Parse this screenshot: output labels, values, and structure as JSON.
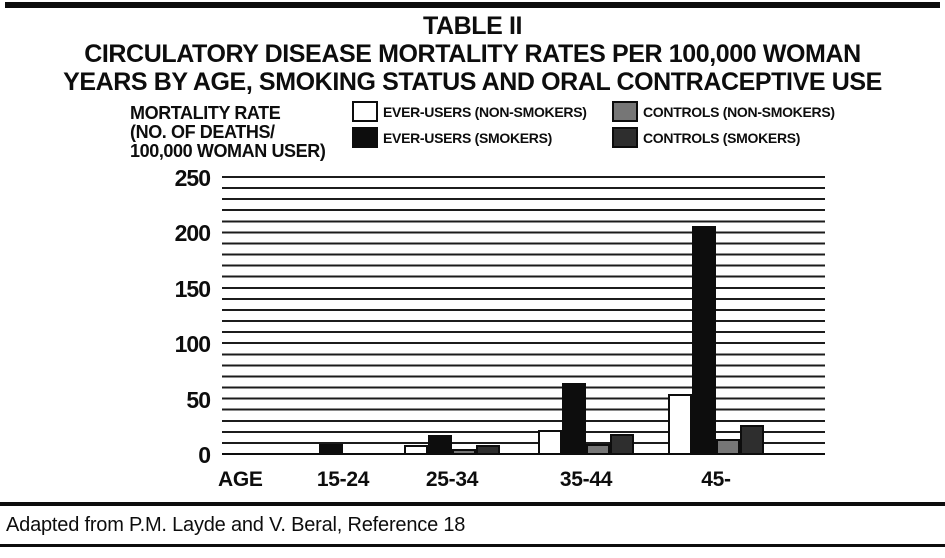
{
  "chart_data": {
    "type": "bar",
    "table_label": "TABLE II",
    "title_line1": "CIRCULATORY DISEASE MORTALITY RATES PER 100,000 WOMAN",
    "title_line2": "YEARS BY AGE, SMOKING STATUS AND ORAL CONTRACEPTIVE USE",
    "ylabel_lines": [
      "MORTALITY RATE",
      "(NO. OF DEATHS/",
      "100,000 WOMAN USER)"
    ],
    "ylabel": "MORTALITY RATE (NO. OF DEATHS/100,000 WOMAN USER)",
    "xlabel": "AGE",
    "categories": [
      "15-24",
      "25-34",
      "35-44",
      "45-"
    ],
    "series": [
      {
        "name": "EVER-USERS (NON-SMOKERS)",
        "color": "#ffffff",
        "values": [
          0,
          9,
          23,
          55
        ]
      },
      {
        "name": "EVER-USERS (SMOKERS)",
        "color": "#0d0d0d",
        "values": [
          10,
          18,
          65,
          207
        ]
      },
      {
        "name": "CONTROLS (NON-SMOKERS)",
        "color": "#767676",
        "values": [
          0,
          5,
          10,
          14
        ]
      },
      {
        "name": "CONTROLS (SMOKERS)",
        "color": "#2e2e2e",
        "values": [
          0,
          9,
          19,
          27
        ]
      }
    ],
    "ylim": [
      0,
      250
    ],
    "yticks": [
      0,
      50,
      100,
      150,
      200,
      250
    ],
    "grid": "horizontal lines every 10 units (hatched background)",
    "legend_position": "top"
  },
  "footer": {
    "text": "Adapted from P.M. Layde and V. Beral, Reference 18"
  }
}
